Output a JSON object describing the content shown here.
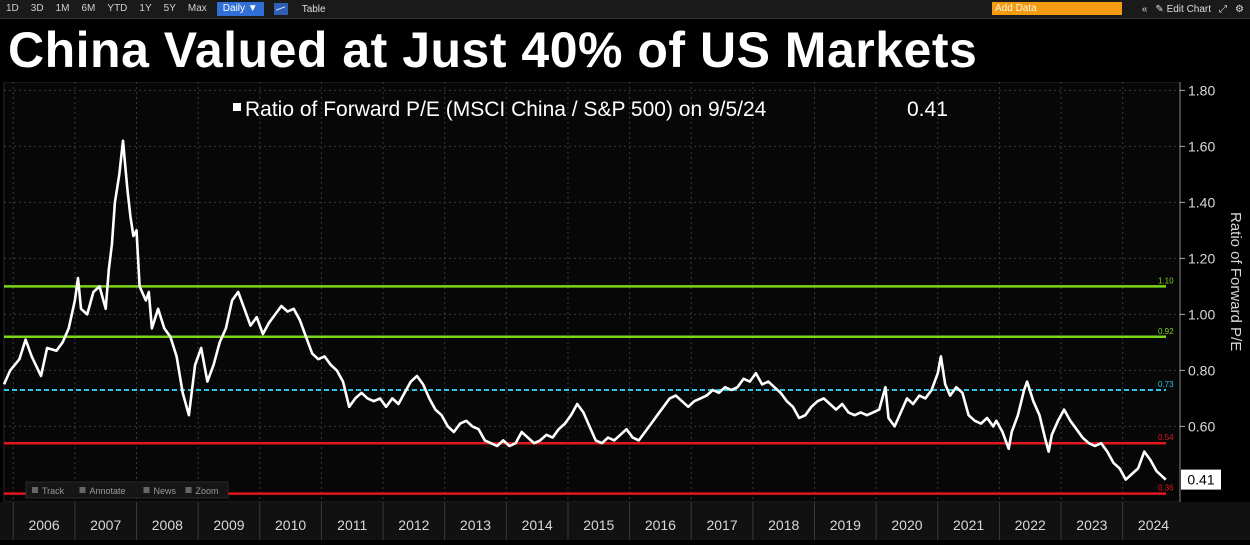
{
  "toolbar": {
    "ranges": [
      "1D",
      "3D",
      "1M",
      "6M",
      "YTD",
      "1Y",
      "5Y",
      "Max"
    ],
    "frequency": "Daily ▼",
    "chart_icon": "line-chart-icon",
    "table_label": "Table",
    "add_data_placeholder": "Add Data",
    "collapse": "«",
    "edit_chart": "✎ Edit Chart",
    "expand": "⤢",
    "settings": "⚙"
  },
  "title": "China Valued at Just 40% of US Markets",
  "plot_toolbar": [
    {
      "icon": "track-icon",
      "label": "Track"
    },
    {
      "icon": "annotate-icon",
      "label": "Annotate"
    },
    {
      "icon": "news-icon",
      "label": "News"
    },
    {
      "icon": "zoom-icon",
      "label": "Zoom"
    }
  ],
  "colors": {
    "background": "#000000",
    "grid": "#3a3a3a",
    "series": "#ffffff",
    "green": "#7bd61a",
    "cyan": "#29c6e6",
    "red": "#e0171d",
    "axis_text": "#d8d8d8"
  },
  "chart_data": {
    "type": "line",
    "legend": "Ratio of Forward P/E (MSCI China / S&P 500) on 9/5/24",
    "legend_value": "0.41",
    "legend_position": "top-center",
    "ylabel": "Ratio of Forward P/E",
    "ylim": [
      0.33,
      1.83
    ],
    "yticks": [
      0.6,
      0.8,
      1.0,
      1.2,
      1.4,
      1.6,
      1.8
    ],
    "ytick_labels": [
      "0.60",
      "0.80",
      "1.00",
      "1.20",
      "1.40",
      "1.60",
      "1.80"
    ],
    "xlim": [
      2005.85,
      2024.93
    ],
    "xticks": [
      "2006",
      "2007",
      "2008",
      "2009",
      "2010",
      "2011",
      "2012",
      "2013",
      "2014",
      "2015",
      "2016",
      "2017",
      "2018",
      "2019",
      "2020",
      "2021",
      "2022",
      "2023",
      "2024"
    ],
    "grid": true,
    "last_value_label": "0.41",
    "reference_lines": [
      {
        "value": 1.1,
        "label": "1.10",
        "color": "#7bd61a",
        "style": "solid"
      },
      {
        "value": 0.92,
        "label": "0.92",
        "color": "#7bd61a",
        "style": "solid"
      },
      {
        "value": 0.73,
        "label": "0.73",
        "color": "#29c6e6",
        "style": "dashed"
      },
      {
        "value": 0.54,
        "label": "0.54",
        "color": "#e0171d",
        "style": "solid"
      },
      {
        "value": 0.36,
        "label": "0.36",
        "color": "#e0171d",
        "style": "solid"
      }
    ],
    "series": [
      {
        "color": "#ffffff",
        "points": [
          [
            2005.85,
            0.75
          ],
          [
            2005.95,
            0.8
          ],
          [
            2006.1,
            0.84
          ],
          [
            2006.2,
            0.91
          ],
          [
            2006.3,
            0.85
          ],
          [
            2006.45,
            0.78
          ],
          [
            2006.55,
            0.88
          ],
          [
            2006.7,
            0.87
          ],
          [
            2006.8,
            0.9
          ],
          [
            2006.9,
            0.95
          ],
          [
            2007.0,
            1.05
          ],
          [
            2007.05,
            1.13
          ],
          [
            2007.1,
            1.02
          ],
          [
            2007.2,
            1.0
          ],
          [
            2007.3,
            1.08
          ],
          [
            2007.4,
            1.1
          ],
          [
            2007.5,
            1.02
          ],
          [
            2007.55,
            1.16
          ],
          [
            2007.6,
            1.25
          ],
          [
            2007.65,
            1.4
          ],
          [
            2007.72,
            1.5
          ],
          [
            2007.78,
            1.62
          ],
          [
            2007.85,
            1.45
          ],
          [
            2007.9,
            1.35
          ],
          [
            2007.95,
            1.28
          ],
          [
            2008.0,
            1.3
          ],
          [
            2008.05,
            1.1
          ],
          [
            2008.15,
            1.05
          ],
          [
            2008.2,
            1.08
          ],
          [
            2008.25,
            0.95
          ],
          [
            2008.35,
            1.02
          ],
          [
            2008.45,
            0.95
          ],
          [
            2008.55,
            0.92
          ],
          [
            2008.65,
            0.85
          ],
          [
            2008.75,
            0.72
          ],
          [
            2008.85,
            0.64
          ],
          [
            2008.95,
            0.82
          ],
          [
            2009.05,
            0.88
          ],
          [
            2009.15,
            0.76
          ],
          [
            2009.25,
            0.82
          ],
          [
            2009.35,
            0.9
          ],
          [
            2009.45,
            0.95
          ],
          [
            2009.55,
            1.05
          ],
          [
            2009.65,
            1.08
          ],
          [
            2009.75,
            1.02
          ],
          [
            2009.85,
            0.96
          ],
          [
            2009.95,
            0.99
          ],
          [
            2010.05,
            0.93
          ],
          [
            2010.15,
            0.97
          ],
          [
            2010.25,
            1.0
          ],
          [
            2010.35,
            1.03
          ],
          [
            2010.45,
            1.01
          ],
          [
            2010.55,
            1.02
          ],
          [
            2010.65,
            0.98
          ],
          [
            2010.75,
            0.92
          ],
          [
            2010.85,
            0.86
          ],
          [
            2010.95,
            0.84
          ],
          [
            2011.05,
            0.85
          ],
          [
            2011.15,
            0.82
          ],
          [
            2011.25,
            0.8
          ],
          [
            2011.35,
            0.76
          ],
          [
            2011.45,
            0.67
          ],
          [
            2011.55,
            0.7
          ],
          [
            2011.65,
            0.72
          ],
          [
            2011.75,
            0.7
          ],
          [
            2011.85,
            0.69
          ],
          [
            2011.95,
            0.7
          ],
          [
            2012.05,
            0.67
          ],
          [
            2012.15,
            0.7
          ],
          [
            2012.25,
            0.68
          ],
          [
            2012.35,
            0.72
          ],
          [
            2012.45,
            0.76
          ],
          [
            2012.55,
            0.78
          ],
          [
            2012.65,
            0.75
          ],
          [
            2012.75,
            0.7
          ],
          [
            2012.85,
            0.66
          ],
          [
            2012.95,
            0.64
          ],
          [
            2013.05,
            0.6
          ],
          [
            2013.15,
            0.58
          ],
          [
            2013.25,
            0.61
          ],
          [
            2013.35,
            0.62
          ],
          [
            2013.45,
            0.6
          ],
          [
            2013.55,
            0.59
          ],
          [
            2013.65,
            0.55
          ],
          [
            2013.75,
            0.54
          ],
          [
            2013.85,
            0.53
          ],
          [
            2013.95,
            0.55
          ],
          [
            2014.05,
            0.53
          ],
          [
            2014.15,
            0.54
          ],
          [
            2014.25,
            0.58
          ],
          [
            2014.35,
            0.56
          ],
          [
            2014.45,
            0.54
          ],
          [
            2014.55,
            0.55
          ],
          [
            2014.65,
            0.57
          ],
          [
            2014.75,
            0.56
          ],
          [
            2014.85,
            0.59
          ],
          [
            2014.95,
            0.61
          ],
          [
            2015.05,
            0.64
          ],
          [
            2015.15,
            0.68
          ],
          [
            2015.25,
            0.65
          ],
          [
            2015.35,
            0.6
          ],
          [
            2015.45,
            0.55
          ],
          [
            2015.55,
            0.54
          ],
          [
            2015.65,
            0.56
          ],
          [
            2015.75,
            0.55
          ],
          [
            2015.85,
            0.57
          ],
          [
            2015.95,
            0.59
          ],
          [
            2016.05,
            0.56
          ],
          [
            2016.15,
            0.55
          ],
          [
            2016.25,
            0.58
          ],
          [
            2016.35,
            0.61
          ],
          [
            2016.45,
            0.64
          ],
          [
            2016.55,
            0.67
          ],
          [
            2016.65,
            0.7
          ],
          [
            2016.75,
            0.71
          ],
          [
            2016.85,
            0.69
          ],
          [
            2016.95,
            0.67
          ],
          [
            2017.05,
            0.69
          ],
          [
            2017.15,
            0.7
          ],
          [
            2017.25,
            0.71
          ],
          [
            2017.35,
            0.73
          ],
          [
            2017.45,
            0.72
          ],
          [
            2017.55,
            0.74
          ],
          [
            2017.65,
            0.73
          ],
          [
            2017.75,
            0.74
          ],
          [
            2017.85,
            0.77
          ],
          [
            2017.95,
            0.76
          ],
          [
            2018.05,
            0.79
          ],
          [
            2018.15,
            0.75
          ],
          [
            2018.25,
            0.76
          ],
          [
            2018.35,
            0.74
          ],
          [
            2018.45,
            0.72
          ],
          [
            2018.55,
            0.69
          ],
          [
            2018.65,
            0.67
          ],
          [
            2018.75,
            0.63
          ],
          [
            2018.85,
            0.64
          ],
          [
            2018.95,
            0.67
          ],
          [
            2019.05,
            0.69
          ],
          [
            2019.15,
            0.7
          ],
          [
            2019.25,
            0.68
          ],
          [
            2019.35,
            0.66
          ],
          [
            2019.45,
            0.68
          ],
          [
            2019.55,
            0.65
          ],
          [
            2019.65,
            0.64
          ],
          [
            2019.75,
            0.65
          ],
          [
            2019.85,
            0.64
          ],
          [
            2019.95,
            0.65
          ],
          [
            2020.05,
            0.66
          ],
          [
            2020.15,
            0.74
          ],
          [
            2020.2,
            0.63
          ],
          [
            2020.3,
            0.6
          ],
          [
            2020.4,
            0.65
          ],
          [
            2020.5,
            0.7
          ],
          [
            2020.6,
            0.68
          ],
          [
            2020.7,
            0.71
          ],
          [
            2020.8,
            0.7
          ],
          [
            2020.9,
            0.73
          ],
          [
            2021.0,
            0.79
          ],
          [
            2021.05,
            0.85
          ],
          [
            2021.12,
            0.75
          ],
          [
            2021.2,
            0.71
          ],
          [
            2021.3,
            0.74
          ],
          [
            2021.4,
            0.72
          ],
          [
            2021.5,
            0.64
          ],
          [
            2021.6,
            0.62
          ],
          [
            2021.7,
            0.61
          ],
          [
            2021.8,
            0.63
          ],
          [
            2021.9,
            0.6
          ],
          [
            2021.95,
            0.62
          ],
          [
            2022.05,
            0.58
          ],
          [
            2022.15,
            0.52
          ],
          [
            2022.2,
            0.58
          ],
          [
            2022.3,
            0.64
          ],
          [
            2022.4,
            0.73
          ],
          [
            2022.45,
            0.76
          ],
          [
            2022.55,
            0.69
          ],
          [
            2022.65,
            0.64
          ],
          [
            2022.75,
            0.55
          ],
          [
            2022.8,
            0.51
          ],
          [
            2022.85,
            0.57
          ],
          [
            2022.95,
            0.62
          ],
          [
            2023.05,
            0.66
          ],
          [
            2023.15,
            0.62
          ],
          [
            2023.25,
            0.59
          ],
          [
            2023.35,
            0.56
          ],
          [
            2023.45,
            0.54
          ],
          [
            2023.55,
            0.53
          ],
          [
            2023.65,
            0.54
          ],
          [
            2023.75,
            0.51
          ],
          [
            2023.85,
            0.47
          ],
          [
            2023.95,
            0.45
          ],
          [
            2024.05,
            0.41
          ],
          [
            2024.15,
            0.43
          ],
          [
            2024.25,
            0.45
          ],
          [
            2024.35,
            0.51
          ],
          [
            2024.45,
            0.48
          ],
          [
            2024.55,
            0.44
          ],
          [
            2024.65,
            0.42
          ],
          [
            2024.7,
            0.41
          ]
        ]
      }
    ]
  }
}
